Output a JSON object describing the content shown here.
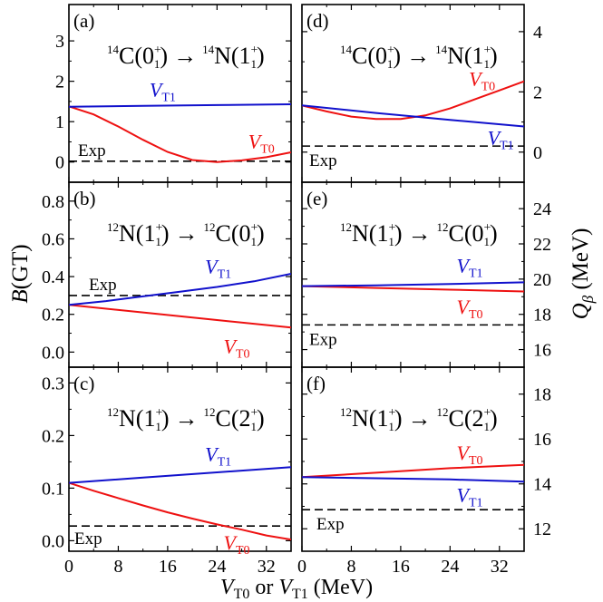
{
  "figure": {
    "xlabel_main": "V",
    "xlabel_sub1": "T0",
    "xlabel_or": " or ",
    "xlabel_sub2": "T1",
    "xlabel_unit": " (MeV)",
    "ylabel_left_main": "B",
    "ylabel_left_paren": "(GT)",
    "ylabel_right_main": "Q",
    "ylabel_right_sub": "β",
    "ylabel_right_unit": " (MeV)"
  },
  "colors": {
    "VT0": "#ee1111",
    "VT1": "#1111cc",
    "exp": "#000000"
  },
  "chart_data": [
    {
      "id": "a",
      "type": "line",
      "tag": "(a)",
      "transition": {
        "mi": "14",
        "mel": "C",
        "mst": "0",
        "mpar": "+",
        "dmi": "14",
        "del": "N",
        "dst": "1",
        "dpar": "+"
      },
      "xlim": [
        0,
        36
      ],
      "ylim": [
        -0.5,
        3.9
      ],
      "xticks": [
        0,
        8,
        16,
        24,
        32
      ],
      "yticks": [
        0,
        1,
        2,
        3
      ],
      "ytick_labels": [
        "0",
        "1",
        "2",
        "3"
      ],
      "series": [
        {
          "name": "VT0",
          "label_main": "V",
          "label_sub": "T0",
          "color": "#ee1111",
          "x": [
            0,
            4,
            8,
            12,
            16,
            20,
            24,
            28,
            32,
            36
          ],
          "y": [
            1.38,
            1.18,
            0.88,
            0.55,
            0.25,
            0.05,
            0.0,
            0.04,
            0.12,
            0.24
          ]
        },
        {
          "name": "VT1",
          "label_main": "V",
          "label_sub": "T1",
          "color": "#1111cc",
          "x": [
            0,
            12,
            24,
            36
          ],
          "y": [
            1.37,
            1.39,
            1.41,
            1.43
          ]
        }
      ],
      "exp": {
        "label": "Exp",
        "y": 0.02
      }
    },
    {
      "id": "b",
      "type": "line",
      "tag": "(b)",
      "transition": {
        "mi": "12",
        "mel": "N",
        "mst": "1",
        "mpar": "+",
        "dmi": "12",
        "del": "C",
        "dst": "0",
        "dpar": "+"
      },
      "xlim": [
        0,
        36
      ],
      "ylim": [
        -0.08,
        0.9
      ],
      "xticks": [
        0,
        8,
        16,
        24,
        32
      ],
      "yticks": [
        0,
        0.2,
        0.4,
        0.6,
        0.8
      ],
      "ytick_labels": [
        "0.0",
        "0.2",
        "0.4",
        "0.6",
        "0.8"
      ],
      "series": [
        {
          "name": "VT0",
          "label_main": "V",
          "label_sub": "T0",
          "color": "#ee1111",
          "x": [
            0,
            12,
            24,
            36
          ],
          "y": [
            0.25,
            0.21,
            0.17,
            0.13
          ]
        },
        {
          "name": "VT1",
          "label_main": "V",
          "label_sub": "T1",
          "color": "#1111cc",
          "x": [
            0,
            6,
            12,
            18,
            24,
            30,
            36
          ],
          "y": [
            0.25,
            0.27,
            0.295,
            0.32,
            0.345,
            0.375,
            0.415
          ]
        }
      ],
      "exp": {
        "label": "Exp",
        "y": 0.3
      }
    },
    {
      "id": "c",
      "type": "line",
      "tag": "(c)",
      "transition": {
        "mi": "12",
        "mel": "N",
        "mst": "1",
        "mpar": "+",
        "dmi": "12",
        "del": "C",
        "dst": "2",
        "dpar": "+"
      },
      "xlim": [
        0,
        36
      ],
      "ylim": [
        -0.02,
        0.33
      ],
      "xticks": [
        0,
        8,
        16,
        24,
        32
      ],
      "yticks": [
        0,
        0.1,
        0.2,
        0.3
      ],
      "ytick_labels": [
        "0.0",
        "0.1",
        "0.2",
        "0.3"
      ],
      "series": [
        {
          "name": "VT0",
          "label_main": "V",
          "label_sub": "T0",
          "color": "#ee1111",
          "x": [
            0,
            4,
            8,
            12,
            16,
            20,
            24,
            28,
            32,
            36
          ],
          "y": [
            0.11,
            0.095,
            0.081,
            0.067,
            0.054,
            0.042,
            0.031,
            0.021,
            0.01,
            0.002
          ]
        },
        {
          "name": "VT1",
          "label_main": "V",
          "label_sub": "T1",
          "color": "#1111cc",
          "x": [
            0,
            12,
            24,
            36
          ],
          "y": [
            0.11,
            0.12,
            0.13,
            0.14
          ]
        }
      ],
      "exp": {
        "label": "Exp",
        "y": 0.028
      }
    },
    {
      "id": "d",
      "type": "line",
      "tag": "(d)",
      "transition": {
        "mi": "14",
        "mel": "C",
        "mst": "0",
        "mpar": "+",
        "dmi": "14",
        "del": "N",
        "dst": "1",
        "dpar": "+"
      },
      "xlim": [
        0,
        36
      ],
      "ylim": [
        -1.0,
        4.9
      ],
      "xticks": [
        0,
        8,
        16,
        24,
        32
      ],
      "yticks": [
        0,
        2,
        4
      ],
      "ytick_labels": [
        "0",
        "2",
        "4"
      ],
      "series": [
        {
          "name": "VT0",
          "label_main": "V",
          "label_sub": "T0",
          "color": "#ee1111",
          "x": [
            0,
            4,
            8,
            12,
            16,
            20,
            24,
            28,
            32,
            36
          ],
          "y": [
            1.55,
            1.35,
            1.18,
            1.1,
            1.1,
            1.22,
            1.45,
            1.75,
            2.05,
            2.35
          ]
        },
        {
          "name": "VT1",
          "label_main": "V",
          "label_sub": "T1",
          "color": "#1111cc",
          "x": [
            0,
            12,
            24,
            36
          ],
          "y": [
            1.55,
            1.3,
            1.07,
            0.85
          ]
        }
      ],
      "exp": {
        "label": "Exp",
        "y": 0.2
      }
    },
    {
      "id": "e",
      "type": "line",
      "tag": "(e)",
      "transition": {
        "mi": "12",
        "mel": "N",
        "mst": "1",
        "mpar": "+",
        "dmi": "12",
        "del": "C",
        "dst": "0",
        "dpar": "+"
      },
      "xlim": [
        0,
        36
      ],
      "ylim": [
        15.0,
        25.5
      ],
      "xticks": [
        0,
        8,
        16,
        24,
        32
      ],
      "yticks": [
        16,
        18,
        20,
        22,
        24
      ],
      "ytick_labels": [
        "16",
        "18",
        "20",
        "22",
        "24"
      ],
      "series": [
        {
          "name": "VT0",
          "label_main": "V",
          "label_sub": "T0",
          "color": "#ee1111",
          "x": [
            0,
            12,
            24,
            36
          ],
          "y": [
            19.6,
            19.5,
            19.4,
            19.3
          ]
        },
        {
          "name": "VT1",
          "label_main": "V",
          "label_sub": "T1",
          "color": "#1111cc",
          "x": [
            0,
            12,
            24,
            36
          ],
          "y": [
            19.6,
            19.65,
            19.72,
            19.82
          ]
        }
      ],
      "exp": {
        "label": "Exp",
        "y": 17.4
      }
    },
    {
      "id": "f",
      "type": "line",
      "tag": "(f)",
      "transition": {
        "mi": "12",
        "mel": "N",
        "mst": "1",
        "mpar": "+",
        "dmi": "12",
        "del": "C",
        "dst": "2",
        "dpar": "+"
      },
      "xlim": [
        0,
        36
      ],
      "ylim": [
        11.0,
        19.2
      ],
      "xticks": [
        0,
        8,
        16,
        24,
        32
      ],
      "yticks": [
        12,
        14,
        16,
        18
      ],
      "ytick_labels": [
        "12",
        "14",
        "16",
        "18"
      ],
      "series": [
        {
          "name": "VT0",
          "label_main": "V",
          "label_sub": "T0",
          "color": "#ee1111",
          "x": [
            0,
            12,
            24,
            36
          ],
          "y": [
            14.3,
            14.5,
            14.7,
            14.85
          ]
        },
        {
          "name": "VT1",
          "label_main": "V",
          "label_sub": "T1",
          "color": "#1111cc",
          "x": [
            0,
            12,
            24,
            36
          ],
          "y": [
            14.3,
            14.25,
            14.2,
            14.1
          ]
        }
      ],
      "exp": {
        "label": "Exp",
        "y": 12.85
      }
    }
  ]
}
